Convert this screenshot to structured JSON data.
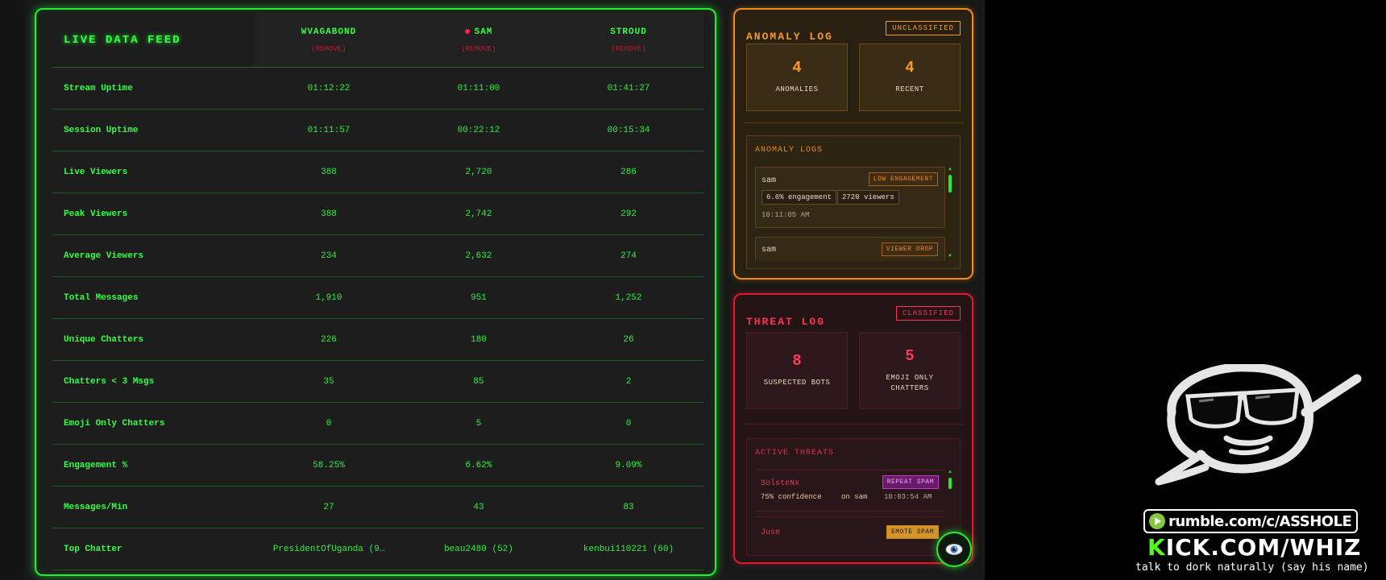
{
  "feed": {
    "title": "LIVE DATA FEED",
    "remove_label": "(REMOVE)",
    "columns": [
      {
        "name": "WVAGABOND",
        "live": false
      },
      {
        "name": "SAM",
        "live": true
      },
      {
        "name": "STROUD",
        "live": false
      }
    ],
    "rows": [
      {
        "label": "Stream Uptime",
        "values": [
          "01:12:22",
          "01:11:00",
          "01:41:27"
        ]
      },
      {
        "label": "Session Uptime",
        "values": [
          "01:11:57",
          "00:22:12",
          "00:15:34"
        ]
      },
      {
        "label": "Live Viewers",
        "values": [
          "388",
          "2,720",
          "286"
        ]
      },
      {
        "label": "Peak Viewers",
        "values": [
          "388",
          "2,742",
          "292"
        ]
      },
      {
        "label": "Average Viewers",
        "values": [
          "234",
          "2,632",
          "274"
        ]
      },
      {
        "label": "Total Messages",
        "values": [
          "1,910",
          "951",
          "1,252"
        ]
      },
      {
        "label": "Unique Chatters",
        "values": [
          "226",
          "180",
          "26"
        ]
      },
      {
        "label": "Chatters < 3 Msgs",
        "values": [
          "35",
          "85",
          "2"
        ]
      },
      {
        "label": "Emoji Only Chatters",
        "values": [
          "0",
          "5",
          "0"
        ]
      },
      {
        "label": "Engagement %",
        "values": [
          "58.25%",
          "6.62%",
          "9.09%"
        ]
      },
      {
        "label": "Messages/Min",
        "values": [
          "27",
          "43",
          "83"
        ]
      },
      {
        "label": "Top Chatter",
        "values": [
          "PresidentOfUganda (9…",
          "beau2480 (52)",
          "kenbui110221 (60)"
        ]
      }
    ]
  },
  "anomaly": {
    "title": "ANOMALY LOG",
    "badge": "UNCLASSIFIED",
    "stats": [
      {
        "value": "4",
        "label": "ANOMALIES"
      },
      {
        "value": "4",
        "label": "RECENT"
      }
    ],
    "logs_title": "ANOMALY LOGS",
    "logs": [
      {
        "name": "sam",
        "tag": "LOW ENGAGEMENT",
        "chips": [
          "6.6% engagement",
          "2720 viewers"
        ],
        "time": "10:11:05 AM"
      },
      {
        "name": "sam",
        "tag": "VIEWER DROP"
      }
    ]
  },
  "threat": {
    "title": "THREAT LOG",
    "badge": "CLASSIFIED",
    "stats": [
      {
        "value": "8",
        "label": "SUSPECTED BOTS"
      },
      {
        "value": "5",
        "label": "EMOJI ONLY CHATTERS"
      }
    ],
    "logs_title": "ACTIVE THREATS",
    "threats": [
      {
        "name": "SolsteNx",
        "tag": "REPEAT SPAM",
        "confidence": "75% confidence",
        "target": "on sam",
        "time": "10:03:54 AM"
      },
      {
        "name": "Juse",
        "tag": "EMOTE SPAM"
      }
    ]
  },
  "overlay": {
    "rumble": "rumble.com/c/ASSHOLE",
    "kick_k": "K",
    "kick_rest": "ICK.COM/WHIZ",
    "talk": "talk to dork naturally (say his name)"
  },
  "colors": {
    "green": "#22ee33",
    "orange": "#f08c1a",
    "red": "#e01a2e",
    "kick": "#53fc18"
  },
  "icons": {
    "eye_button": "eye-icon",
    "live": "live-dot-icon",
    "rumble": "rumble-play-icon"
  }
}
